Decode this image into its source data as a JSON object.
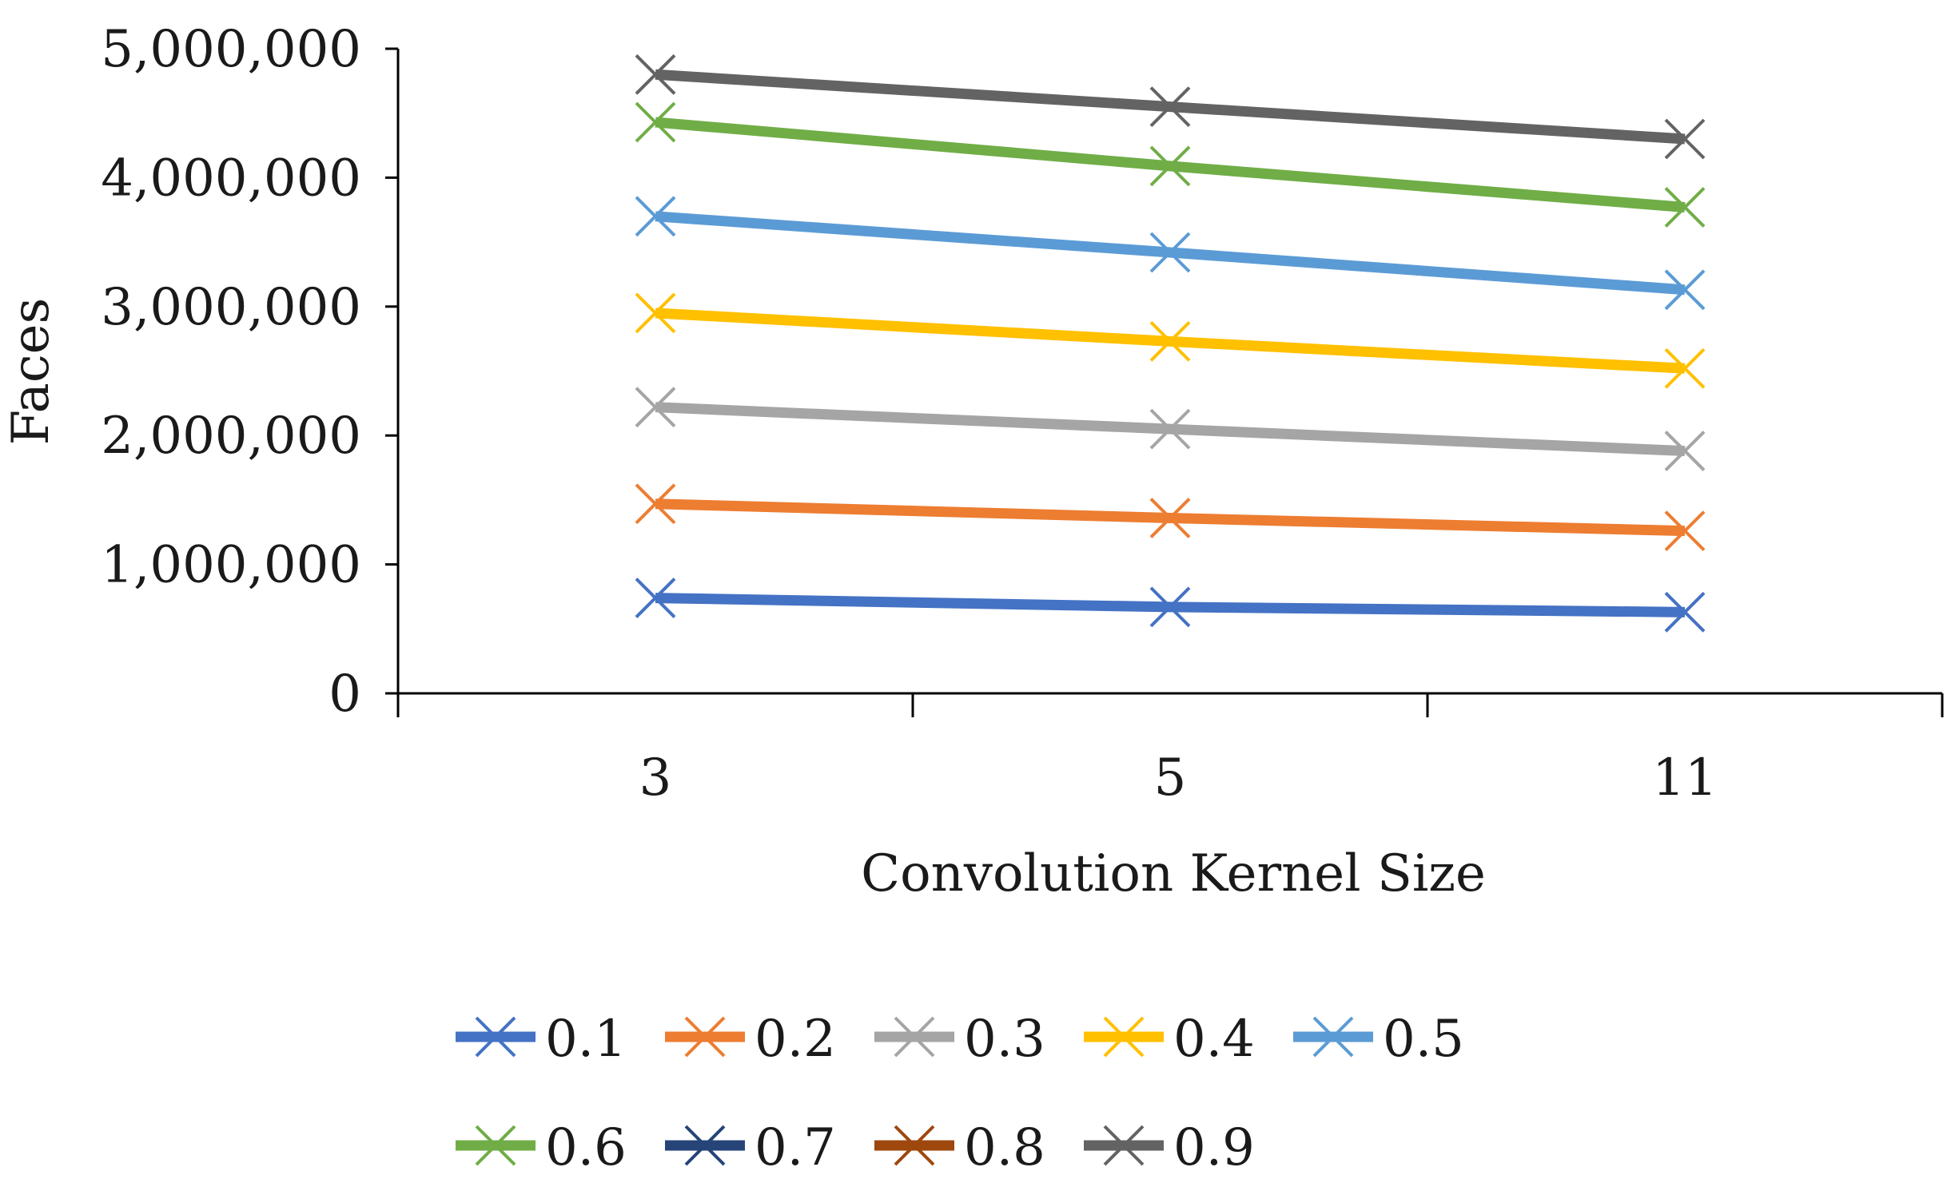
{
  "chart_data": {
    "type": "line",
    "title": "",
    "xlabel": "Convolution Kernel Size",
    "ylabel": "Faces",
    "categories": [
      "3",
      "5",
      "11"
    ],
    "yticks": [
      "0",
      "1,000,000",
      "2,000,000",
      "3,000,000",
      "4,000,000",
      "5,000,000"
    ],
    "ylim": [
      0,
      5000000
    ],
    "grid": false,
    "legend_position": "bottom",
    "marker": "x",
    "series": [
      {
        "name": "0.1",
        "color": "#4472C4",
        "values": [
          740000,
          670000,
          630000
        ]
      },
      {
        "name": "0.2",
        "color": "#ED7D31",
        "values": [
          1470000,
          1360000,
          1260000
        ]
      },
      {
        "name": "0.3",
        "color": "#A5A5A5",
        "values": [
          2220000,
          2050000,
          1880000
        ]
      },
      {
        "name": "0.4",
        "color": "#FFC000",
        "values": [
          2950000,
          2730000,
          2520000
        ]
      },
      {
        "name": "0.5",
        "color": "#5B9BD5",
        "values": [
          3700000,
          3420000,
          3130000
        ]
      },
      {
        "name": "0.6",
        "color": "#70AD47",
        "values": [
          4430000,
          4090000,
          3770000
        ]
      },
      {
        "name": "0.7",
        "color": "#264478",
        "values": [
          null,
          null,
          null
        ]
      },
      {
        "name": "0.8",
        "color": "#9E480E",
        "values": [
          null,
          null,
          null
        ]
      },
      {
        "name": "0.9",
        "color": "#636363",
        "values": [
          4800000,
          4550000,
          4300000
        ]
      }
    ]
  }
}
